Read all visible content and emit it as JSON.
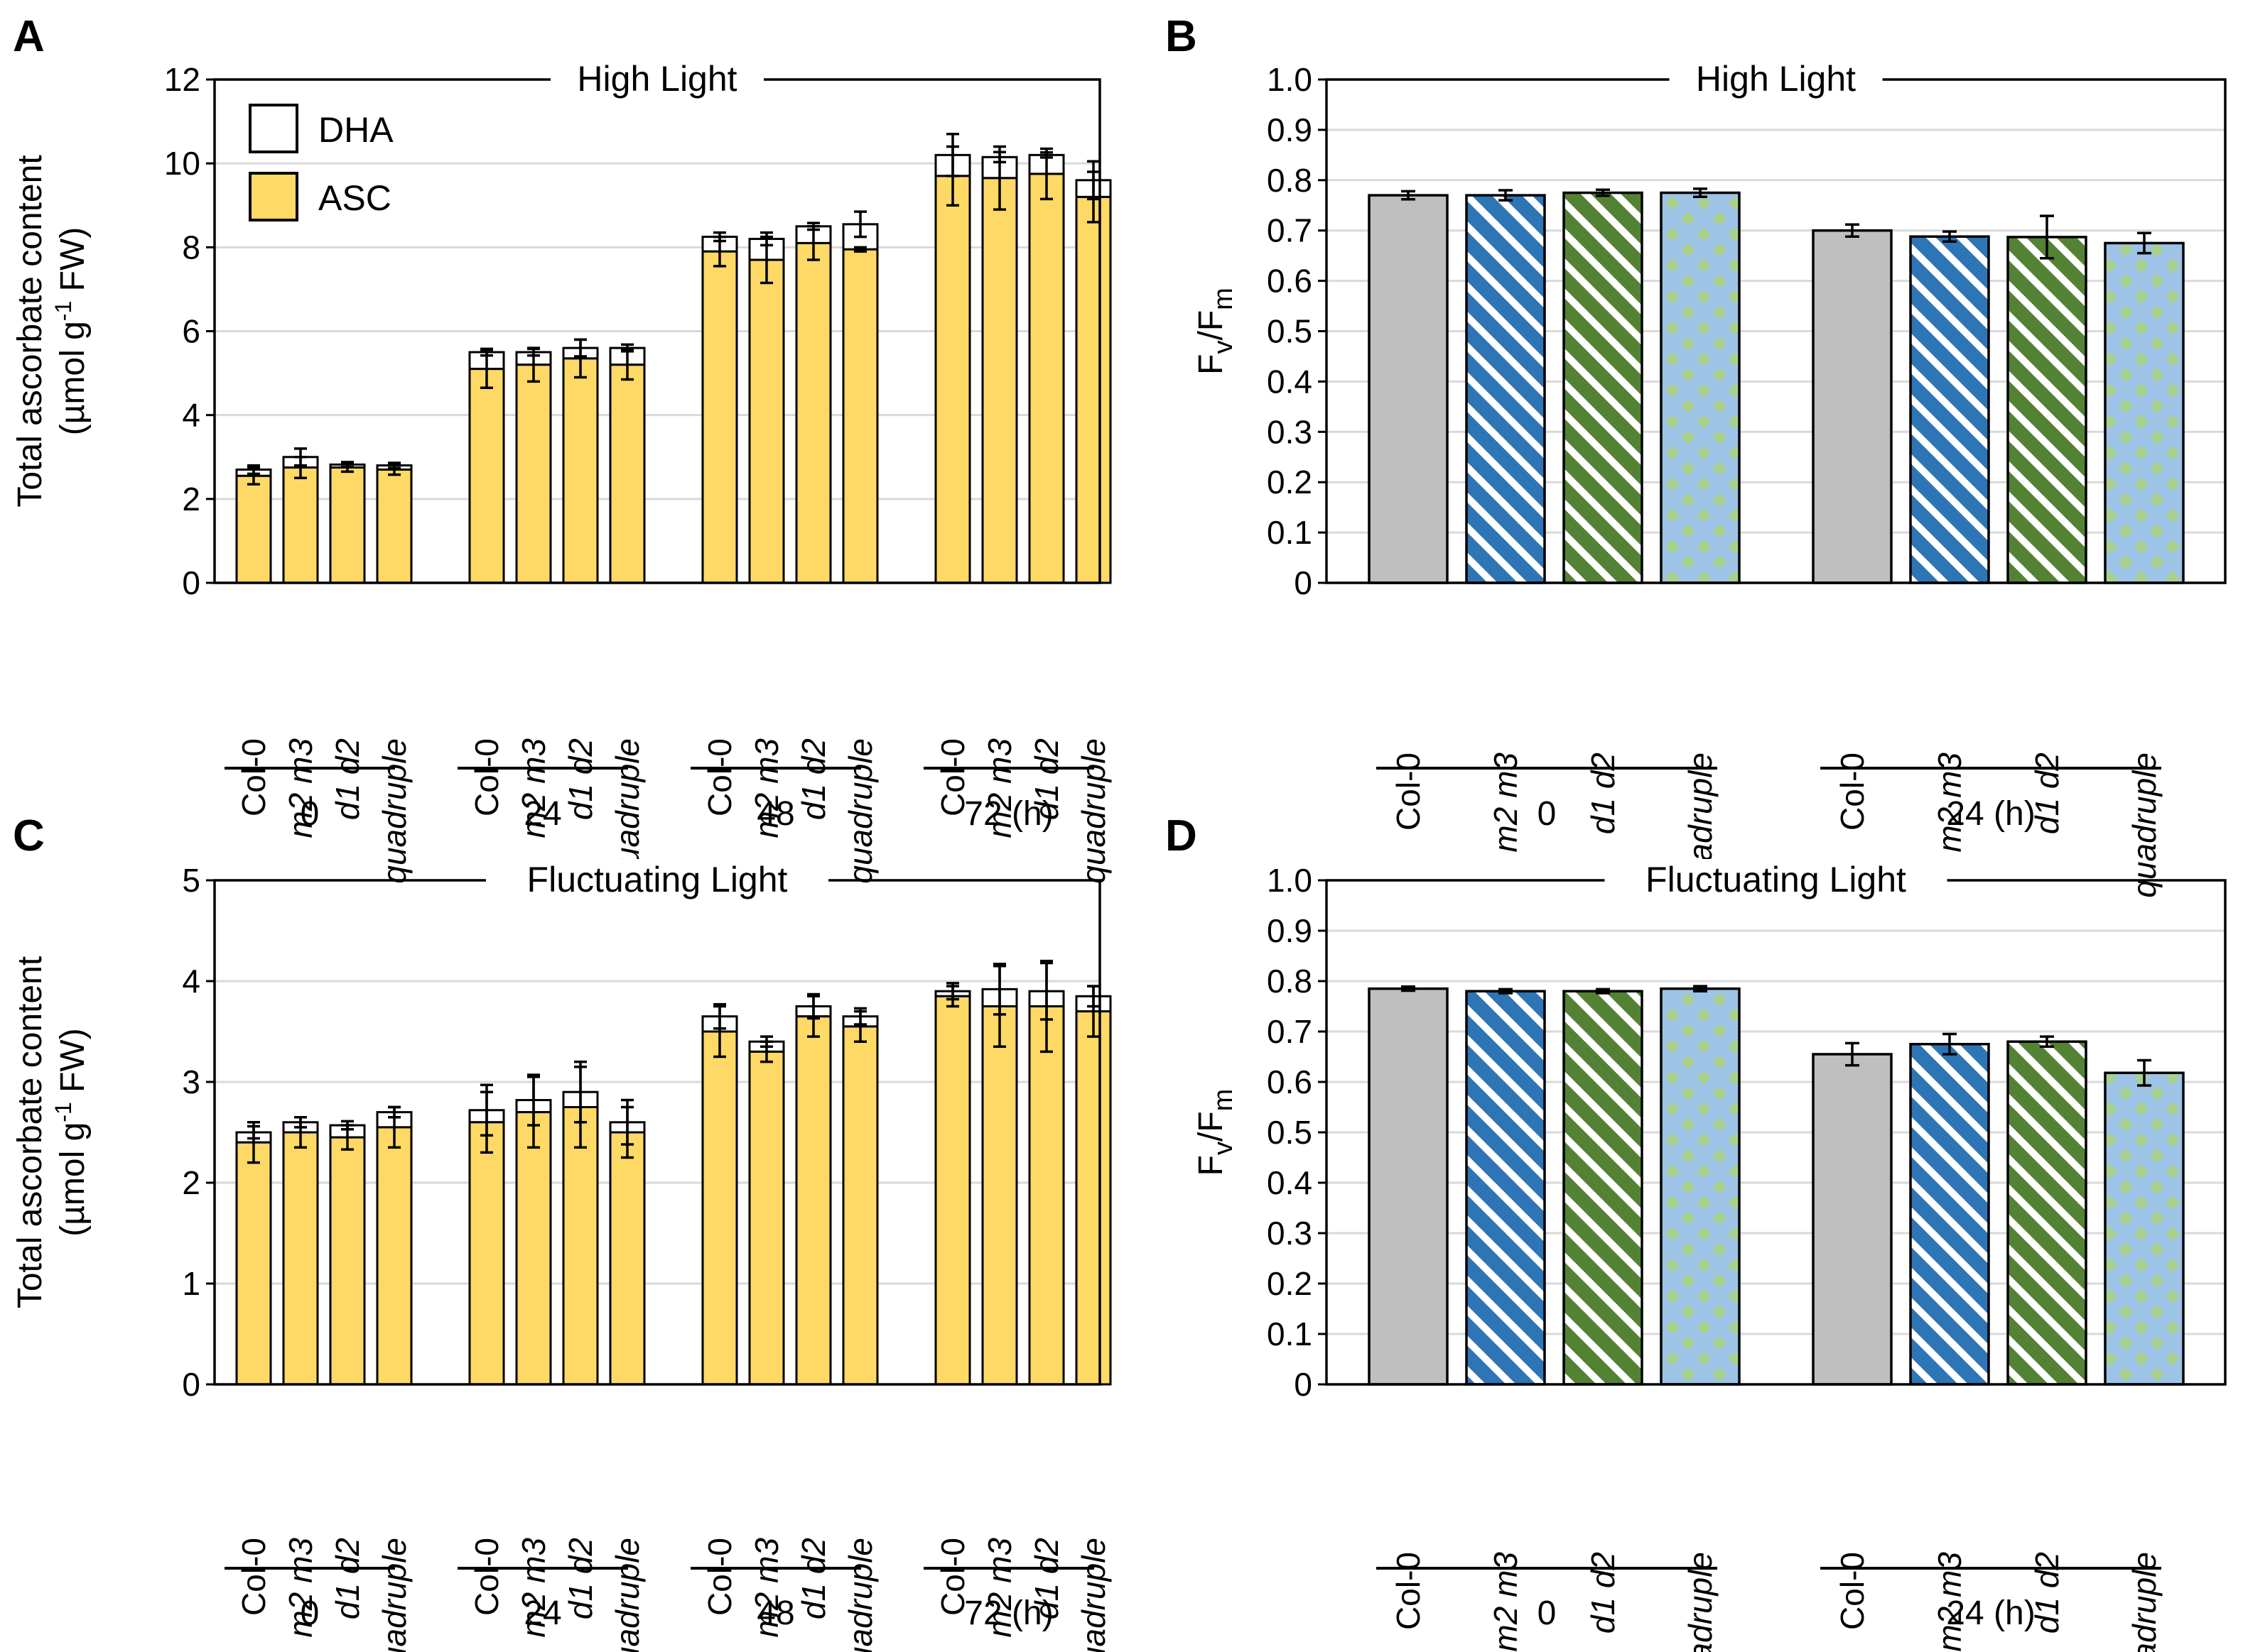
{
  "colors": {
    "asc": "#FFD966",
    "dha": "#FFFFFF",
    "col0": "#BFBFBF",
    "m2m3_a": "#2E75B6",
    "m2m3_b": "#FFFFFF",
    "d1d2_a": "#548235",
    "d1d2_b": "#FFFFFF",
    "quad_bg": "#9DC3E6",
    "quad_dot": "#A9D18E",
    "grid": "#D9D9D9"
  },
  "legend": {
    "dha": "DHA",
    "asc": "ASC"
  },
  "chart_data": [
    {
      "panel": "A",
      "type": "bar",
      "stacked": true,
      "title": "High Light",
      "ylabel_line1": "Total ascorbate content",
      "ylabel_line2_pre": "(µmol g",
      "ylabel_line2_sup": "-1",
      "ylabel_line2_post": " FW)",
      "ylim": [
        0,
        12
      ],
      "yticks": [
        "0",
        "2",
        "4",
        "6",
        "8",
        "10",
        "12"
      ],
      "groups": [
        "0",
        "24",
        "48",
        "72 (h)"
      ],
      "categories": [
        "Col-0",
        "m2 m3",
        "d1 d2",
        "quadruple"
      ],
      "series": [
        {
          "name": "ASC",
          "values": [
            [
              2.55,
              2.75,
              2.75,
              2.7
            ],
            [
              5.1,
              5.2,
              5.35,
              5.2
            ],
            [
              7.9,
              7.7,
              8.1,
              7.95
            ],
            [
              9.7,
              9.65,
              9.75,
              9.2
            ]
          ],
          "err": [
            [
              0.2,
              0.25,
              0.1,
              0.12
            ],
            [
              0.45,
              0.4,
              0.45,
              0.35
            ],
            [
              0.35,
              0.55,
              0.4,
              0.05
            ],
            [
              0.7,
              0.75,
              0.6,
              0.6
            ]
          ]
        },
        {
          "name": "DHA",
          "totals": [
            [
              2.7,
              3.0,
              2.82,
              2.8
            ],
            [
              5.5,
              5.5,
              5.6,
              5.6
            ],
            [
              8.25,
              8.2,
              8.5,
              8.55
            ],
            [
              10.2,
              10.15,
              10.2,
              9.6
            ]
          ],
          "err": [
            [
              0.1,
              0.2,
              0.06,
              0.06
            ],
            [
              0.08,
              0.08,
              0.2,
              0.08
            ],
            [
              0.1,
              0.15,
              0.08,
              0.3
            ],
            [
              0.5,
              0.12,
              0.06,
              0.45
            ]
          ]
        }
      ],
      "group_label_suffix": ""
    },
    {
      "panel": "B",
      "type": "bar",
      "title": "High Light",
      "ylabel_main": "F",
      "ylabel_sub1": "v",
      "ylabel_mid": "/F",
      "ylabel_sub2": "m",
      "ylim": [
        0,
        1.0
      ],
      "yticks": [
        "0",
        "0.1",
        "0.2",
        "0.3",
        "0.4",
        "0.5",
        "0.6",
        "0.7",
        "0.8",
        "0.9",
        "1.0"
      ],
      "groups": [
        "0",
        "24 (h)"
      ],
      "categories": [
        "Col-0",
        "m2 m3",
        "d1 d2",
        "quadruple"
      ],
      "values": [
        [
          0.77,
          0.77,
          0.775,
          0.775
        ],
        [
          0.7,
          0.688,
          0.687,
          0.675
        ]
      ],
      "err": [
        [
          0.008,
          0.01,
          0.006,
          0.008
        ],
        [
          0.012,
          0.01,
          0.042,
          0.02
        ]
      ]
    },
    {
      "panel": "C",
      "type": "bar",
      "stacked": true,
      "title": "Fluctuating Light",
      "ylabel_line1": "Total ascorbate content",
      "ylabel_line2_pre": "(µmol g",
      "ylabel_line2_sup": "-1",
      "ylabel_line2_post": " FW)",
      "ylim": [
        0,
        5
      ],
      "yticks": [
        "0",
        "1",
        "2",
        "3",
        "4",
        "5"
      ],
      "groups": [
        "0",
        "24",
        "48",
        "72 (h)"
      ],
      "categories": [
        "Col-0",
        "m2 m3",
        "d1 d2",
        "quadruple"
      ],
      "series": [
        {
          "name": "ASC",
          "values": [
            [
              2.4,
              2.5,
              2.45,
              2.55
            ],
            [
              2.6,
              2.7,
              2.75,
              2.5
            ],
            [
              3.5,
              3.3,
              3.65,
              3.55
            ],
            [
              3.85,
              3.75,
              3.75,
              3.7
            ]
          ],
          "err": [
            [
              0.2,
              0.15,
              0.12,
              0.2
            ],
            [
              0.3,
              0.35,
              0.4,
              0.25
            ],
            [
              0.25,
              0.1,
              0.2,
              0.15
            ],
            [
              0.1,
              0.4,
              0.45,
              0.25
            ]
          ]
        },
        {
          "name": "DHA",
          "totals": [
            [
              2.5,
              2.6,
              2.57,
              2.7
            ],
            [
              2.72,
              2.82,
              2.9,
              2.6
            ],
            [
              3.65,
              3.4,
              3.75,
              3.65
            ],
            [
              3.9,
              3.92,
              3.9,
              3.85
            ]
          ],
          "err": [
            [
              0.06,
              0.05,
              0.04,
              0.05
            ],
            [
              0.25,
              0.25,
              0.3,
              0.22
            ],
            [
              0.12,
              0.05,
              0.12,
              0.08
            ],
            [
              0.08,
              0.25,
              0.28,
              0.1
            ]
          ]
        }
      ]
    },
    {
      "panel": "D",
      "type": "bar",
      "title": "Fluctuating Light",
      "ylabel_main": "F",
      "ylabel_sub1": "v",
      "ylabel_mid": "/F",
      "ylabel_sub2": "m",
      "ylim": [
        0,
        1.0
      ],
      "yticks": [
        "0",
        "0.1",
        "0.2",
        "0.3",
        "0.4",
        "0.5",
        "0.6",
        "0.7",
        "0.8",
        "0.9",
        "1.0"
      ],
      "groups": [
        "0",
        "24 (h)"
      ],
      "categories": [
        "Col-0",
        "m2 m3",
        "d1 d2",
        "quadruple"
      ],
      "values": [
        [
          0.785,
          0.78,
          0.78,
          0.785
        ],
        [
          0.655,
          0.675,
          0.68,
          0.618
        ]
      ],
      "err": [
        [
          0.004,
          0.004,
          0.004,
          0.005
        ],
        [
          0.022,
          0.02,
          0.01,
          0.025
        ]
      ]
    }
  ]
}
